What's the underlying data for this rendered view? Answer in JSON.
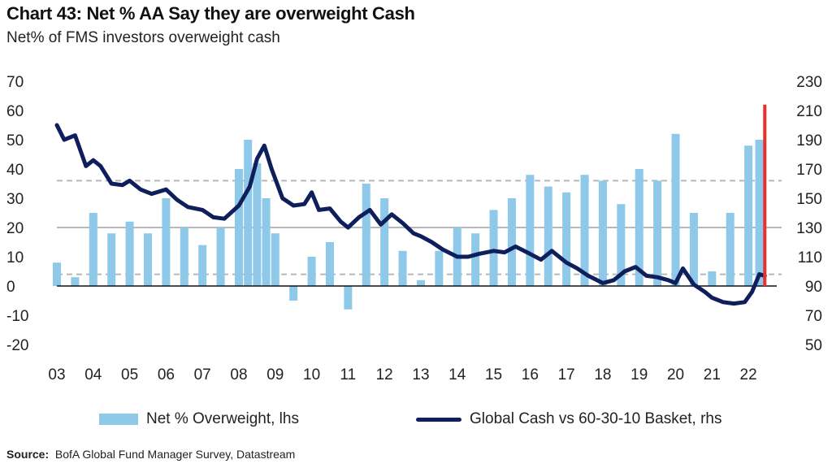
{
  "chart_data": {
    "type": "bar+line",
    "title": "Chart 43: Net % AA Say they are overweight Cash",
    "subtitle": "Net% of FMS investors overweight cash",
    "source_label": "Source:",
    "source_text": "BofA Global Fund Manager Survey, Datastream",
    "x_ticks": [
      "03",
      "04",
      "05",
      "06",
      "07",
      "08",
      "09",
      "10",
      "11",
      "12",
      "13",
      "14",
      "15",
      "16",
      "17",
      "18",
      "19",
      "20",
      "21",
      "22"
    ],
    "x_range": [
      2003.0,
      2022.6
    ],
    "left_axis": {
      "ticks": [
        "70",
        "60",
        "50",
        "40",
        "30",
        "20",
        "10",
        "0",
        "-10",
        "-20"
      ],
      "ylim": [
        -20,
        70
      ]
    },
    "right_axis": {
      "ticks": [
        "230",
        "210",
        "190",
        "170",
        "150",
        "130",
        "110",
        "90",
        "70",
        "50"
      ],
      "ylim": [
        50,
        230
      ]
    },
    "reference_lines": [
      {
        "value": 36,
        "axis": "left",
        "style": "dashed"
      },
      {
        "value": 20,
        "axis": "left",
        "style": "solid"
      },
      {
        "value": 4,
        "axis": "left",
        "style": "dashed"
      }
    ],
    "highlight_latest": {
      "x": 2022.45,
      "value": 62,
      "color": "#e8312a"
    },
    "series": [
      {
        "name": "Net % Overweight, lhs",
        "kind": "bar",
        "axis": "left",
        "color": "#8ec9ea",
        "x": [
          2003.0,
          2003.5,
          2004.0,
          2004.5,
          2005.0,
          2005.5,
          2006.0,
          2006.5,
          2007.0,
          2007.5,
          2008.0,
          2008.25,
          2008.5,
          2008.75,
          2009.0,
          2009.5,
          2010.0,
          2010.5,
          2011.0,
          2011.5,
          2012.0,
          2012.5,
          2013.0,
          2013.5,
          2014.0,
          2014.5,
          2015.0,
          2015.5,
          2016.0,
          2016.5,
          2017.0,
          2017.5,
          2018.0,
          2018.5,
          2019.0,
          2019.5,
          2020.0,
          2020.5,
          2021.0,
          2021.5,
          2022.0,
          2022.3
        ],
        "values": [
          8,
          3,
          25,
          18,
          22,
          18,
          30,
          20,
          14,
          20,
          40,
          50,
          42,
          30,
          18,
          -5,
          10,
          15,
          -8,
          35,
          30,
          12,
          2,
          12,
          20,
          18,
          26,
          30,
          38,
          34,
          32,
          38,
          36,
          28,
          40,
          36,
          52,
          25,
          5,
          25,
          48,
          50
        ]
      },
      {
        "name": "Global Cash vs 60-30-10 Basket, rhs",
        "kind": "line",
        "axis": "right",
        "color": "#0f1f5c",
        "x": [
          2003.0,
          2003.2,
          2003.5,
          2003.8,
          2004.0,
          2004.2,
          2004.5,
          2004.8,
          2005.0,
          2005.3,
          2005.6,
          2006.0,
          2006.3,
          2006.6,
          2007.0,
          2007.3,
          2007.6,
          2008.0,
          2008.3,
          2008.5,
          2008.7,
          2008.9,
          2009.2,
          2009.5,
          2009.8,
          2010.0,
          2010.2,
          2010.5,
          2010.8,
          2011.0,
          2011.3,
          2011.6,
          2011.9,
          2012.2,
          2012.5,
          2012.8,
          2013.0,
          2013.3,
          2013.6,
          2014.0,
          2014.3,
          2014.6,
          2015.0,
          2015.3,
          2015.6,
          2016.0,
          2016.3,
          2016.6,
          2017.0,
          2017.3,
          2017.6,
          2018.0,
          2018.3,
          2018.6,
          2018.9,
          2019.2,
          2019.5,
          2019.8,
          2020.0,
          2020.2,
          2020.5,
          2020.8,
          2021.0,
          2021.3,
          2021.6,
          2021.9,
          2022.1,
          2022.3,
          2022.45
        ],
        "values": [
          200,
          190,
          193,
          172,
          176,
          172,
          160,
          159,
          162,
          156,
          153,
          156,
          149,
          144,
          142,
          137,
          136,
          145,
          158,
          177,
          186,
          170,
          150,
          145,
          146,
          154,
          142,
          143,
          134,
          130,
          137,
          142,
          132,
          139,
          133,
          126,
          124,
          120,
          115,
          110,
          110,
          112,
          114,
          113,
          117,
          112,
          108,
          114,
          106,
          102,
          97,
          92,
          94,
          100,
          103,
          97,
          96,
          94,
          92,
          102,
          91,
          86,
          82,
          79,
          78,
          79,
          86,
          98,
          97
        ]
      }
    ],
    "legend": {
      "position": "bottom"
    }
  }
}
